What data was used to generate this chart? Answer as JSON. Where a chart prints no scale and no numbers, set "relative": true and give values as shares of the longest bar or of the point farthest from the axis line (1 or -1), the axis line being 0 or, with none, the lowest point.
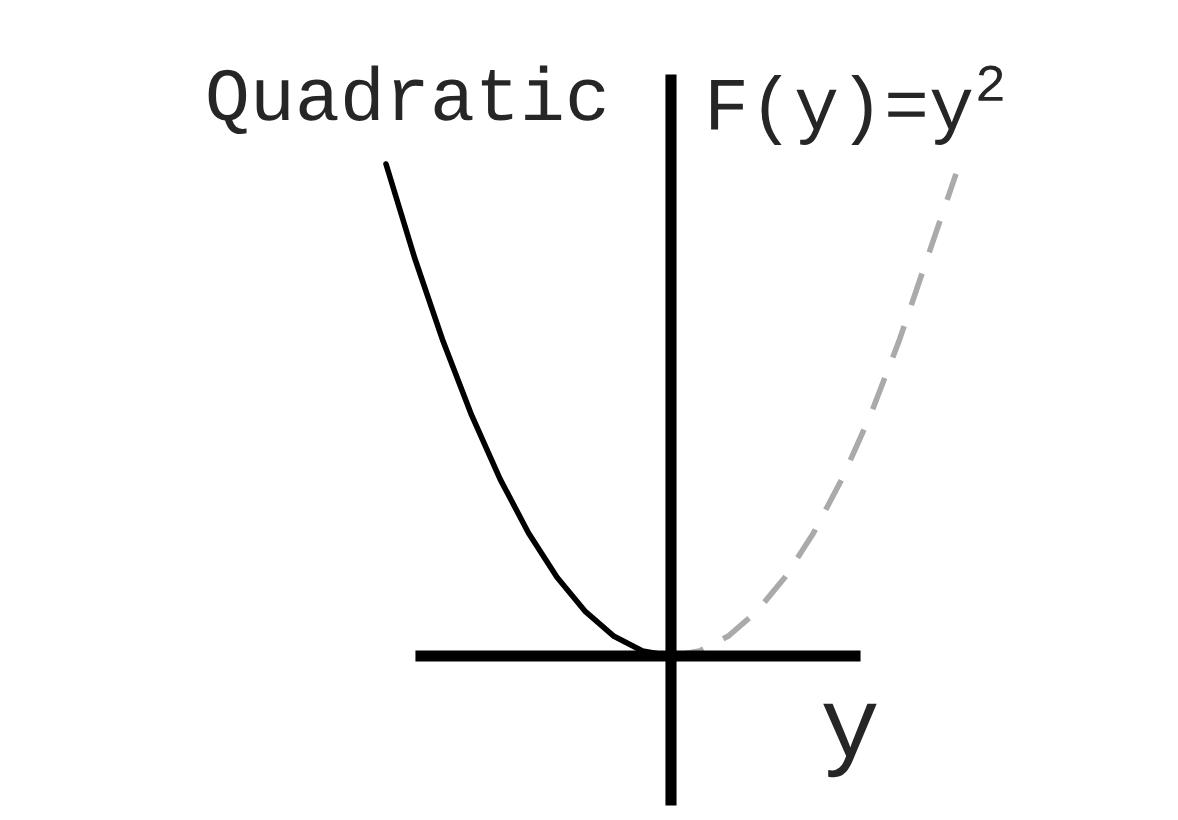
{
  "chart_data": {
    "type": "line",
    "relative": true,
    "xlabel": "y",
    "annotations": [
      "Quadratic",
      "F(y)=y$^{2}$"
    ],
    "categories": [
      null,
      null,
      null,
      null,
      null,
      null,
      null,
      null,
      null,
      null,
      null,
      null,
      null,
      null,
      null,
      null,
      null,
      null,
      null,
      null,
      null
    ],
    "series": [
      {
        "color": "#000000",
        "line_style": "solid",
        "values": [
          1,
          0.81,
          0.64,
          0.49,
          0.36,
          0.25,
          0.16,
          0.09,
          0.04,
          0.01,
          0,
          null,
          null,
          null,
          null,
          null,
          null,
          null,
          null,
          null,
          null
        ]
      },
      {
        "color": "#aaaaaa",
        "line_style": "dashed",
        "values": [
          null,
          null,
          null,
          null,
          null,
          null,
          null,
          null,
          null,
          null,
          0,
          0.01,
          0.04,
          0.09,
          0.16,
          0.25,
          0.36,
          0.49,
          0.64,
          0.81,
          0.98
        ]
      }
    ]
  }
}
